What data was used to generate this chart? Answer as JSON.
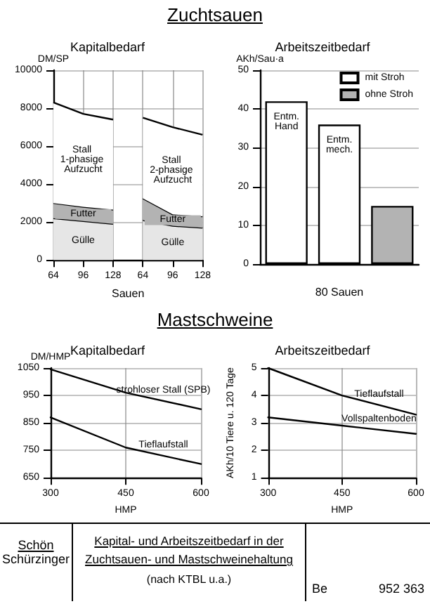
{
  "chart_data": [
    {
      "type": "area",
      "subtitle": "Zuchtsauen",
      "title": "Kapitalbedarf",
      "xlabel": "Sauen",
      "ylabel": "DM/SP",
      "stacked": true,
      "grid": true,
      "categories": [
        "64",
        "96",
        "128",
        "64",
        "96",
        "128"
      ],
      "ylim": [
        0,
        10000
      ],
      "yticks": [
        0,
        2000,
        4000,
        6000,
        8000,
        10000
      ],
      "series": [
        {
          "name": "Gülle",
          "color": "#e6e6e6",
          "values": [
            2200,
            2050,
            1900,
            null,
            null,
            null
          ]
        },
        {
          "name": "Futter",
          "color": "#b3b3b3",
          "values": [
            800,
            750,
            750,
            null,
            null,
            null
          ]
        },
        {
          "name": "Stall 1-phasige Aufzucht",
          "color": "#ffffff",
          "values": [
            5300,
            4900,
            4750,
            null,
            null,
            null
          ]
        },
        {
          "name": "Gülle",
          "color": "#e6e6e6",
          "values": [
            null,
            null,
            null,
            2100,
            1800,
            1700
          ]
        },
        {
          "name": "Futter",
          "color": "#b3b3b3",
          "values": [
            null,
            null,
            null,
            1150,
            600,
            600
          ]
        },
        {
          "name": "Stall 2-phasige Aufzucht",
          "color": "#ffffff",
          "values": [
            null,
            null,
            null,
            4250,
            4600,
            4300
          ]
        }
      ]
    },
    {
      "type": "bar",
      "title": "Arbeitszeitbedarf",
      "xlabel": "80 Sauen",
      "ylabel": "AKh/Sau·a",
      "grid": "y",
      "legend": "top right",
      "categories": [
        "Entm. Hand",
        "Entm. mech.",
        null
      ],
      "ylim": [
        0,
        50
      ],
      "yticks": [
        0,
        10,
        20,
        30,
        40,
        50
      ],
      "series": [
        {
          "name": "mit Stroh",
          "color": "#ffffff",
          "values": [
            42,
            36,
            null
          ]
        },
        {
          "name": "ohne Stroh",
          "color": "#b3b3b3",
          "values": [
            null,
            null,
            15
          ]
        }
      ]
    },
    {
      "type": "line",
      "subtitle": "Mastschweine",
      "title": "Kapitalbedarf",
      "xlabel": "HMP",
      "ylabel": "DM/HMP",
      "grid": true,
      "marker": "none",
      "xlim": [
        300,
        600
      ],
      "xticks": [
        300,
        450,
        600
      ],
      "ylim": [
        650,
        1050
      ],
      "yticks": [
        650,
        750,
        850,
        950,
        1050
      ],
      "series": [
        {
          "name": "strohloser Stall (SPB)",
          "color": "#000000",
          "x": [
            300,
            450,
            600
          ],
          "values": [
            1045,
            960,
            900
          ]
        },
        {
          "name": "Tieflaufstall",
          "color": "#000000",
          "x": [
            300,
            450,
            600
          ],
          "values": [
            870,
            760,
            700
          ]
        }
      ]
    },
    {
      "type": "line",
      "title": "Arbeitszeitbedarf",
      "xlabel": "HMP",
      "ylabel": "AKh/10 Tiere u. 120 Tage",
      "grid": true,
      "marker": "none",
      "xlim": [
        300,
        600
      ],
      "xticks": [
        300,
        450,
        600
      ],
      "ylim": [
        1,
        5
      ],
      "yticks": [
        1,
        2,
        3,
        4,
        5
      ],
      "series": [
        {
          "name": "Tieflaufstall",
          "color": "#000000",
          "x": [
            300,
            450,
            600
          ],
          "values": [
            5,
            4,
            3.3
          ]
        },
        {
          "name": "Vollspaltenboden",
          "color": "#000000",
          "x": [
            300,
            450,
            600
          ],
          "values": [
            3.2,
            2.9,
            2.6
          ]
        }
      ],
      "annotations": [
        "Schön",
        "Schürzinger",
        "Kapital- und Arbeitszeitbedarf in der Zuchtsauen- und Mastschweinehaltung",
        "(nach KTBL u.a.)",
        "Be",
        "952 363"
      ]
    }
  ]
}
